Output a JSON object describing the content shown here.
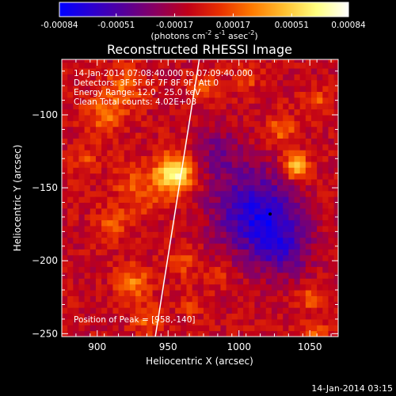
{
  "chart_data": {
    "type": "heatmap",
    "title": "Reconstructed RHESSI Image",
    "xlabel": "Heliocentric X (arcsec)",
    "ylabel": "Heliocentric Y (arcsec)",
    "xlim": [
      875,
      1070
    ],
    "ylim": [
      -252,
      -62
    ],
    "x_ticks": [
      900,
      950,
      1000,
      1050
    ],
    "y_ticks": [
      -100,
      -150,
      -200,
      -250
    ],
    "colorbar": {
      "range": [
        -0.00084,
        0.00084
      ],
      "tick_values": [
        -0.00084,
        -0.00051,
        -0.00017,
        0.00017,
        0.00051,
        0.00084
      ],
      "tick_labels": [
        "-0.00084",
        "-0.00051",
        "-0.00017",
        "0.00017",
        "0.00051",
        "0.00084"
      ],
      "units_text": "(photons cm",
      "units_exp1": "-2",
      "units_mid": " s",
      "units_exp2": "-1",
      "units_mid2": " asec",
      "units_exp3": "-2",
      "units_close": ")",
      "colormap": [
        "#0000ff",
        "#2b00d0",
        "#55009a",
        "#8a0060",
        "#c00018",
        "#e83000",
        "#ff7a00",
        "#ffc030",
        "#ffff80",
        "#ffffff"
      ]
    },
    "annotations": {
      "time_range": "14-Jan-2014 07:08:40.000 to 07:09:40.000",
      "detectors": "Detectors: 3F 5F 6F 7F 8F 9F, Att 0",
      "energy": "Energy Range: 12.0 - 25.0 keV",
      "method": "Clean    Total counts: 4.02E+03",
      "peak": "Position of Peak = [958,-140]"
    },
    "peak": {
      "x": 958,
      "y": -140
    },
    "limb_line": [
      [
        941,
        -252
      ],
      [
        972,
        -62
      ]
    ],
    "marker": {
      "x": 1022,
      "y": -168
    },
    "footer_timestamp": "14-Jan-2014 03:15"
  }
}
